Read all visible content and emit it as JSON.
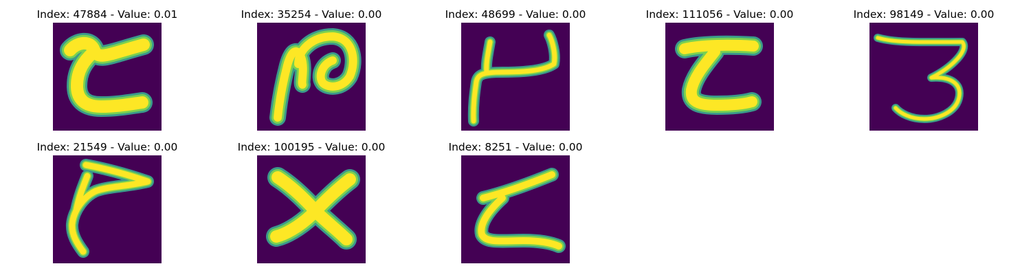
{
  "colors": {
    "background": "#440154",
    "stroke_core": "#fde725",
    "stroke_edge": "#3b9a8b",
    "stroke_mid": "#7ad151"
  },
  "panels": [
    {
      "title": "Index: 47884 - Value: 0.01"
    },
    {
      "title": "Index: 35254 - Value: 0.00"
    },
    {
      "title": "Index: 48699 - Value: 0.00"
    },
    {
      "title": "Index: 111056 - Value: 0.00"
    },
    {
      "title": "Index: 98149 - Value: 0.00"
    },
    {
      "title": "Index: 21549 - Value: 0.00"
    },
    {
      "title": "Index: 100195 - Value: 0.00"
    },
    {
      "title": "Index: 8251 - Value: 0.00"
    }
  ]
}
